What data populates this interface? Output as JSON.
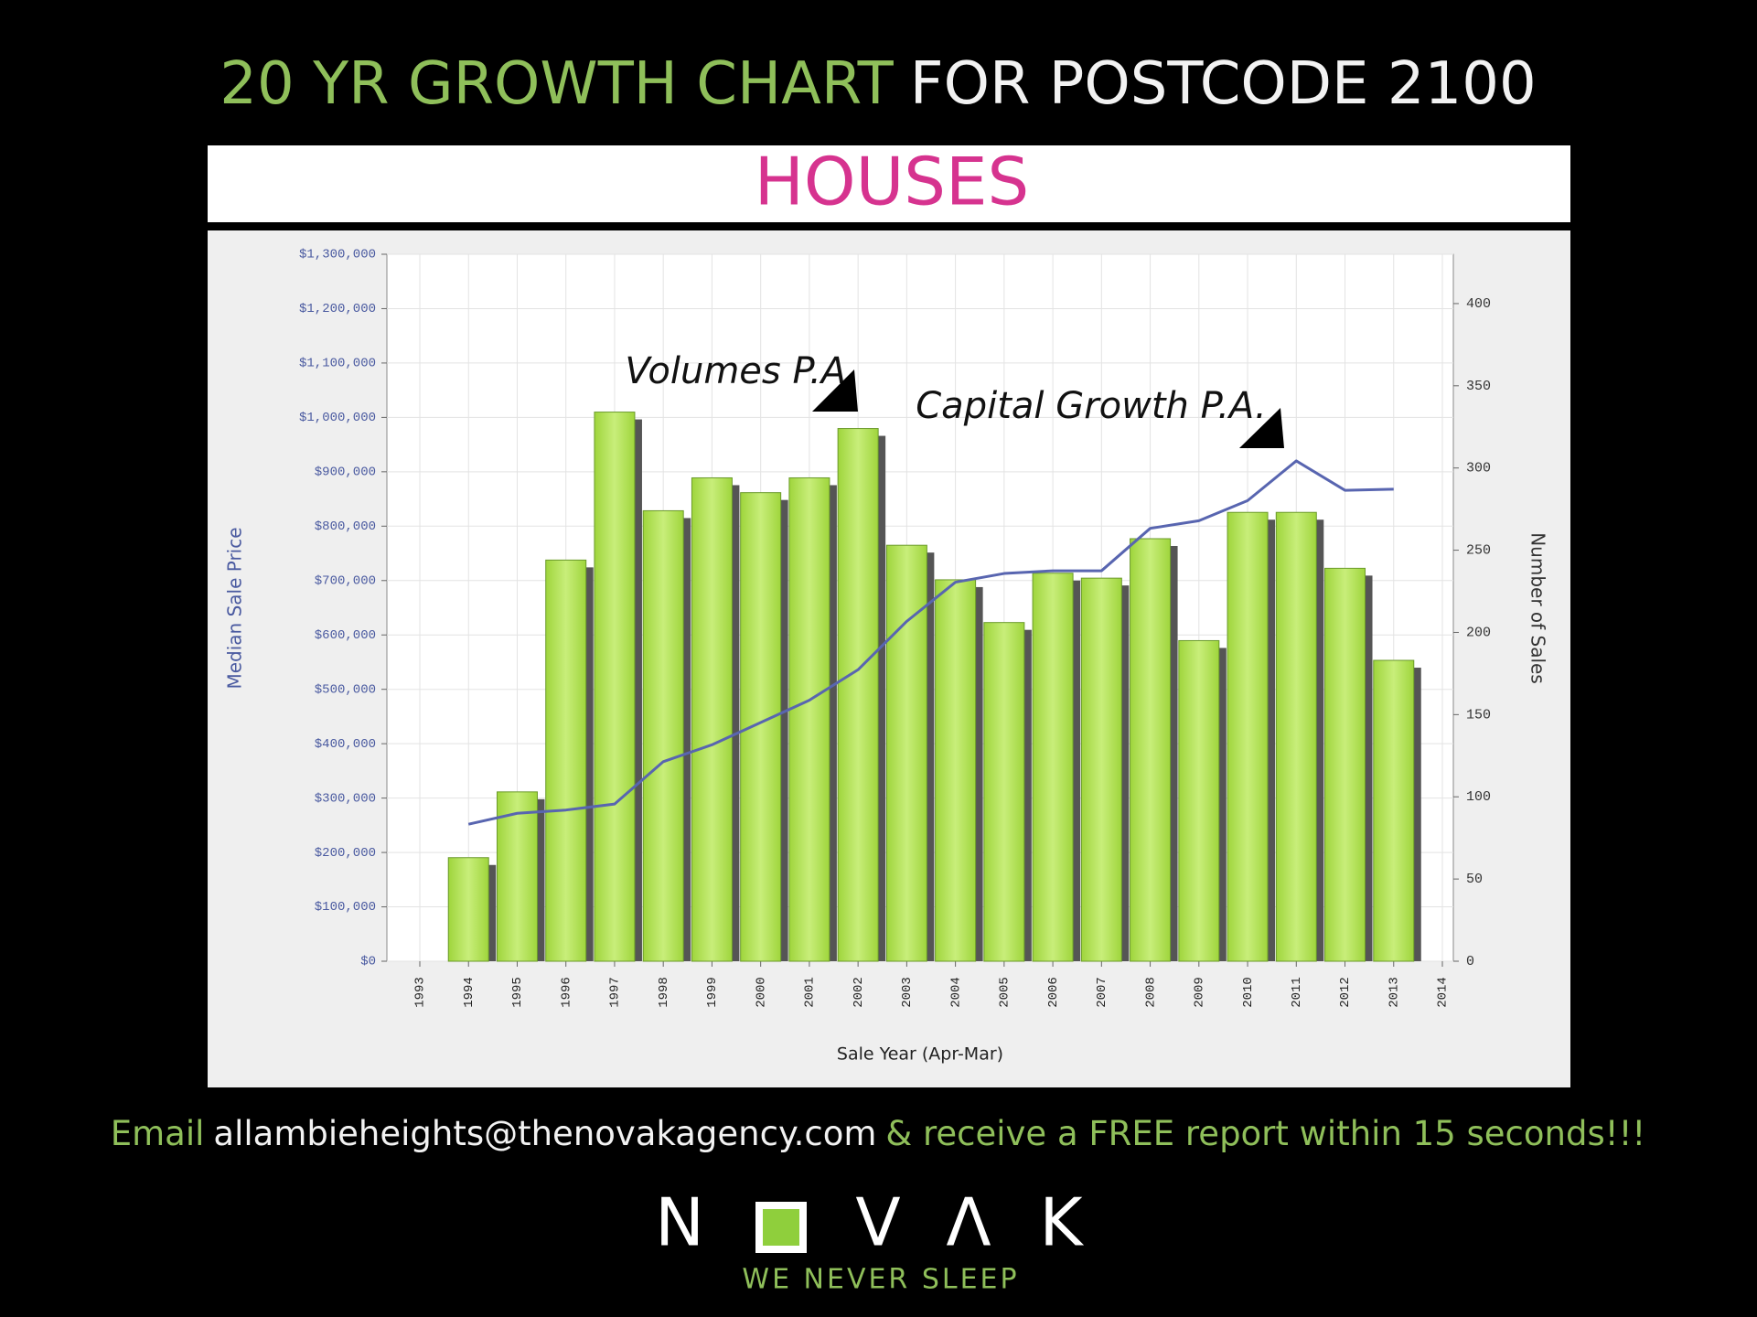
{
  "header": {
    "title_highlight": "20 YR GROWTH CHART",
    "title_rest": "FOR POSTCODE 2100"
  },
  "chart_data": {
    "type": "combo",
    "title": "HOUSES",
    "x_label": "Sale Year (Apr-Mar)",
    "y_label": "Median Sale Price",
    "y2_label": "Number of Sales",
    "categories": [
      "1993",
      "1994",
      "1995",
      "1996",
      "1997",
      "1998",
      "1999",
      "2000",
      "2001",
      "2002",
      "2003",
      "2004",
      "2005",
      "2006",
      "2007",
      "2008",
      "2009",
      "2010",
      "2011",
      "2012",
      "2013",
      "2014"
    ],
    "series": [
      {
        "type": "bar",
        "axis": "y2",
        "color": "#9fd53c",
        "values": [
          null,
          63,
          103,
          244,
          334,
          274,
          294,
          285,
          294,
          324,
          253,
          232,
          206,
          236,
          233,
          257,
          195,
          273,
          273,
          239,
          183,
          null
        ]
      },
      {
        "type": "line",
        "color": "#5865b0",
        "values": [
          null,
          252000,
          272000,
          278000,
          289000,
          367000,
          398000,
          439000,
          480000,
          536000,
          625000,
          697000,
          713000,
          718000,
          718000,
          796000,
          810000,
          847000,
          920000,
          866000,
          868000,
          null
        ]
      }
    ],
    "ylim": [
      0,
      1300000
    ],
    "yticks": [
      {
        "value": 0,
        "label": "$0"
      },
      {
        "value": 100000,
        "label": "$100,000"
      },
      {
        "value": 200000,
        "label": "$200,000"
      },
      {
        "value": 300000,
        "label": "$300,000"
      },
      {
        "value": 400000,
        "label": "$400,000"
      },
      {
        "value": 500000,
        "label": "$500,000"
      },
      {
        "value": 600000,
        "label": "$600,000"
      },
      {
        "value": 700000,
        "label": "$700,000"
      },
      {
        "value": 800000,
        "label": "$800,000"
      },
      {
        "value": 900000,
        "label": "$900,000"
      },
      {
        "value": 1000000,
        "label": "$1,000,000"
      },
      {
        "value": 1100000,
        "label": "$1,100,000"
      },
      {
        "value": 1200000,
        "label": "$1,200,000"
      },
      {
        "value": 1300000,
        "label": "$1,300,000"
      }
    ],
    "y2lim": [
      0,
      430
    ],
    "y2ticks": [
      0,
      50,
      100,
      150,
      200,
      250,
      300,
      350,
      400
    ],
    "grid": true,
    "annotations": [
      {
        "text": "Volumes P.A."
      },
      {
        "text": "Capital Growth P.A."
      }
    ]
  },
  "footer": {
    "lead": "Email",
    "email": "allambieheights@thenovakagency.com",
    "rest": "& receive a FREE report within 15 seconds!!!"
  },
  "logo": {
    "letters": [
      "N",
      "V",
      "Λ",
      "K"
    ],
    "tagline": "WE NEVER SLEEP"
  }
}
